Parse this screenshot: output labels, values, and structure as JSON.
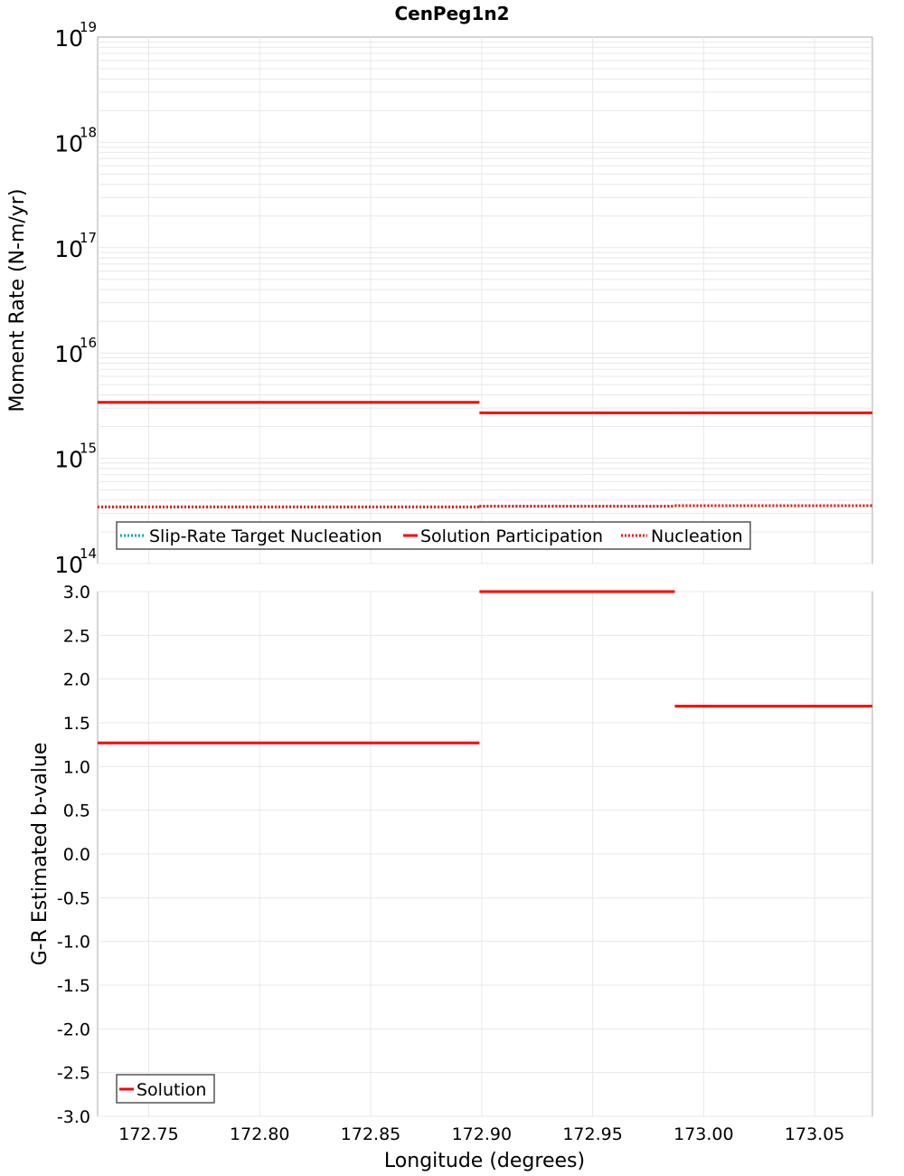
{
  "title": "CenPeg1n2",
  "chart_data": [
    {
      "type": "line",
      "title": "CenPeg1n2",
      "xlabel": "Longitude (degrees)",
      "ylabel": "Moment Rate (N-m/yr)",
      "yscale": "log",
      "ylim": [
        100000000000000.0,
        1e+19
      ],
      "xlim": [
        172.727,
        173.076
      ],
      "ytick_labels": [
        "10^14",
        "10^15",
        "10^16",
        "10^17",
        "10^18",
        "10^19"
      ],
      "grid": true,
      "legend_position": "lower-left",
      "legend": [
        "Slip-Rate Target Nucleation",
        "Solution Participation",
        "Nucleation"
      ],
      "series": [
        {
          "name": "Slip-Rate Target Nucleation",
          "style": "dotted",
          "color": "#00aaaa",
          "segments": [
            [
              172.727,
              172.899,
              345000000000000.0
            ],
            [
              172.899,
              172.987,
              350000000000000.0
            ],
            [
              172.987,
              173.076,
              355000000000000.0
            ]
          ]
        },
        {
          "name": "Solution Participation",
          "style": "solid",
          "color": "#ff0000",
          "segments": [
            [
              172.727,
              172.899,
              3400000000000000.0
            ],
            [
              172.899,
              172.987,
              2700000000000000.0
            ],
            [
              172.987,
              173.076,
              2700000000000000.0
            ]
          ]
        },
        {
          "name": "Nucleation",
          "style": "dotted",
          "color": "#ff0000",
          "segments": [
            [
              172.727,
              172.899,
              345000000000000.0
            ],
            [
              172.899,
              172.987,
              350000000000000.0
            ],
            [
              172.987,
              173.076,
              355000000000000.0
            ]
          ]
        }
      ]
    },
    {
      "type": "line",
      "xlabel": "Longitude (degrees)",
      "ylabel": "G-R Estimated b-value",
      "ylim": [
        -3.0,
        3.0
      ],
      "xlim": [
        172.727,
        173.076
      ],
      "ytick_labels": [
        "3.0",
        "2.5",
        "2.0",
        "1.5",
        "1.0",
        "0.5",
        "0.0",
        "-0.5",
        "-1.0",
        "-1.5",
        "-2.0",
        "-2.5",
        "-3.0"
      ],
      "xtick_labels": [
        "172.75",
        "172.80",
        "172.85",
        "172.90",
        "172.95",
        "173.00",
        "173.05"
      ],
      "grid": true,
      "legend_position": "lower-left",
      "legend": [
        "Solution"
      ],
      "series": [
        {
          "name": "Solution",
          "style": "solid",
          "color": "#ff0000",
          "segments": [
            [
              172.727,
              172.899,
              1.27
            ],
            [
              172.899,
              172.987,
              3.0
            ],
            [
              172.987,
              173.076,
              1.69
            ]
          ]
        }
      ]
    }
  ]
}
